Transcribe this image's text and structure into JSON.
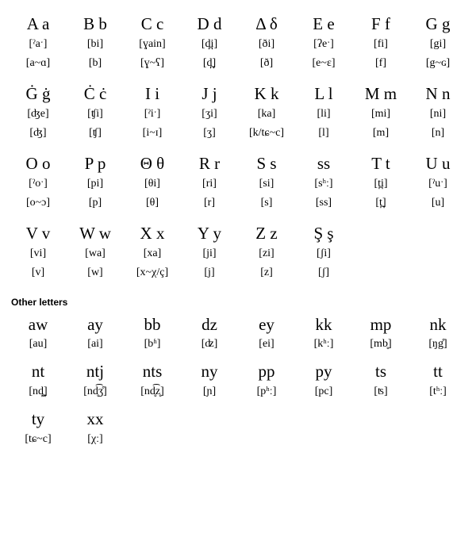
{
  "main_table": {
    "columns": 8,
    "letter_fontsize": 21,
    "ipa_fontsize": 14,
    "background_color": "#ffffff",
    "text_color": "#000000",
    "entries": [
      {
        "letter": "A a",
        "name": "[ˀaˑ]",
        "sound": "[a~ɑ]"
      },
      {
        "letter": "B b",
        "name": "[bi]",
        "sound": "[b]"
      },
      {
        "letter": "C c",
        "name": "[ɣain]",
        "sound": "[ɣ~ʕ]"
      },
      {
        "letter": "D d",
        "name": "[d̪i]",
        "sound": "[d̪]"
      },
      {
        "letter": "Δ δ",
        "name": "[ði]",
        "sound": "[ð]"
      },
      {
        "letter": "E e",
        "name": "[ʔeˑ]",
        "sound": "[e~ɛ]"
      },
      {
        "letter": "F f",
        "name": "[fi]",
        "sound": "[f]"
      },
      {
        "letter": "G g",
        "name": "[gi]",
        "sound": "[g~ɢ]"
      },
      {
        "letter": "Ġ ġ",
        "name": "[ʤe]",
        "sound": "[ʤ]"
      },
      {
        "letter": "Ċ ċ",
        "name": "[ʧi]",
        "sound": "[ʧ]"
      },
      {
        "letter": "I i",
        "name": "[ˀiˑ]",
        "sound": "[i~ɪ]"
      },
      {
        "letter": "J j",
        "name": "[ʒi]",
        "sound": "[ʒ]"
      },
      {
        "letter": "K k",
        "name": "[ka]",
        "sound": "[k/tɕ~c]"
      },
      {
        "letter": "L l",
        "name": "[li]",
        "sound": "[l]"
      },
      {
        "letter": "M m",
        "name": "[mi]",
        "sound": "[m]"
      },
      {
        "letter": "N n",
        "name": "[ni]",
        "sound": "[n]"
      },
      {
        "letter": "O o",
        "name": "[ˀoˑ]",
        "sound": "[o~ɔ]"
      },
      {
        "letter": "P p",
        "name": "[pi]",
        "sound": "[p]"
      },
      {
        "letter": "Θ θ",
        "name": "[θi]",
        "sound": "[θ]"
      },
      {
        "letter": "R r",
        "name": "[ri]",
        "sound": "[r]"
      },
      {
        "letter": "S s",
        "name": "[si]",
        "sound": "[s]"
      },
      {
        "letter": "ss",
        "name": "[sʰː]",
        "sound": "[ss]"
      },
      {
        "letter": "T t",
        "name": "[t̪i]",
        "sound": "[t̪]"
      },
      {
        "letter": "U u",
        "name": "[ˀuˑ]",
        "sound": "[u]"
      },
      {
        "letter": "V v",
        "name": "[vi]",
        "sound": "[v]"
      },
      {
        "letter": "W w",
        "name": "[wa]",
        "sound": "[w]"
      },
      {
        "letter": "X x",
        "name": "[xa]",
        "sound": "[x~χ/ç]"
      },
      {
        "letter": "Y y",
        "name": "[ji]",
        "sound": "[j]"
      },
      {
        "letter": "Z z",
        "name": "[zi]",
        "sound": "[z]"
      },
      {
        "letter": "Ş ş",
        "name": "[ʃi]",
        "sound": "[ʃ]"
      }
    ]
  },
  "section_title": "Other letters",
  "other_table": {
    "columns": 8,
    "letter_fontsize": 21,
    "ipa_fontsize": 14,
    "entries": [
      {
        "letter": "aw",
        "sound": "[au]"
      },
      {
        "letter": "ay",
        "sound": "[ai]"
      },
      {
        "letter": "bb",
        "sound": "[bʱ]"
      },
      {
        "letter": "dz",
        "sound": "[ʣ]"
      },
      {
        "letter": "ey",
        "sound": "[ei]"
      },
      {
        "letter": "kk",
        "sound": "[kʰː]"
      },
      {
        "letter": "mp",
        "sound": "[mb̥]"
      },
      {
        "letter": "nk",
        "sound": "[ŋg̊]"
      },
      {
        "letter": "nt",
        "sound": "[nd̪̥]"
      },
      {
        "letter": "ntj",
        "sound": "[nd̥͡ʒ̊]"
      },
      {
        "letter": "nts",
        "sound": "[nd̥͡z̥]"
      },
      {
        "letter": "ny",
        "sound": "[ɲ]"
      },
      {
        "letter": "pp",
        "sound": "[pʰː]"
      },
      {
        "letter": "py",
        "sound": "[pc]"
      },
      {
        "letter": "ts",
        "sound": "[ʦ]"
      },
      {
        "letter": "tt",
        "sound": "[tʰː]"
      },
      {
        "letter": "ty",
        "sound": "[tɕ~c]"
      },
      {
        "letter": "xx",
        "sound": "[χː]"
      }
    ]
  }
}
